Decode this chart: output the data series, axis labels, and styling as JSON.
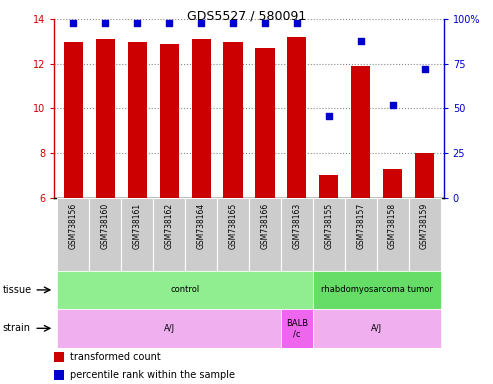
{
  "title": "GDS5527 / 580091",
  "samples": [
    "GSM738156",
    "GSM738160",
    "GSM738161",
    "GSM738162",
    "GSM738164",
    "GSM738165",
    "GSM738166",
    "GSM738163",
    "GSM738155",
    "GSM738157",
    "GSM738158",
    "GSM738159"
  ],
  "transformed_count": [
    13.0,
    13.1,
    13.0,
    12.9,
    13.1,
    13.0,
    12.7,
    13.2,
    7.0,
    11.9,
    7.3,
    8.0
  ],
  "percentile_rank": [
    98,
    98,
    98,
    98,
    98,
    98,
    98,
    98,
    46,
    88,
    52,
    72
  ],
  "ylim_left": [
    6,
    14
  ],
  "ylim_right": [
    0,
    100
  ],
  "yticks_left": [
    6,
    8,
    10,
    12,
    14
  ],
  "yticks_right": [
    0,
    25,
    50,
    75,
    100
  ],
  "bar_color": "#cc0000",
  "dot_color": "#0000cc",
  "tissue_labels": [
    {
      "text": "control",
      "start": 0,
      "end": 7,
      "color": "#90ee90"
    },
    {
      "text": "rhabdomyosarcoma tumor",
      "start": 8,
      "end": 11,
      "color": "#66dd66"
    }
  ],
  "strain_labels": [
    {
      "text": "A/J",
      "start": 0,
      "end": 6,
      "color": "#f0b0f0"
    },
    {
      "text": "BALB\n/c",
      "start": 7,
      "end": 7,
      "color": "#ee66ee"
    },
    {
      "text": "A/J",
      "start": 8,
      "end": 11,
      "color": "#f0b0f0"
    }
  ],
  "legend_bar_color": "#cc0000",
  "legend_dot_color": "#0000cc",
  "left_axis_color": "#cc0000",
  "right_axis_color": "#0000cc",
  "tick_label_bg": "#cccccc",
  "grid_color": "#888888",
  "fig_width": 4.93,
  "fig_height": 3.84,
  "dpi": 100
}
